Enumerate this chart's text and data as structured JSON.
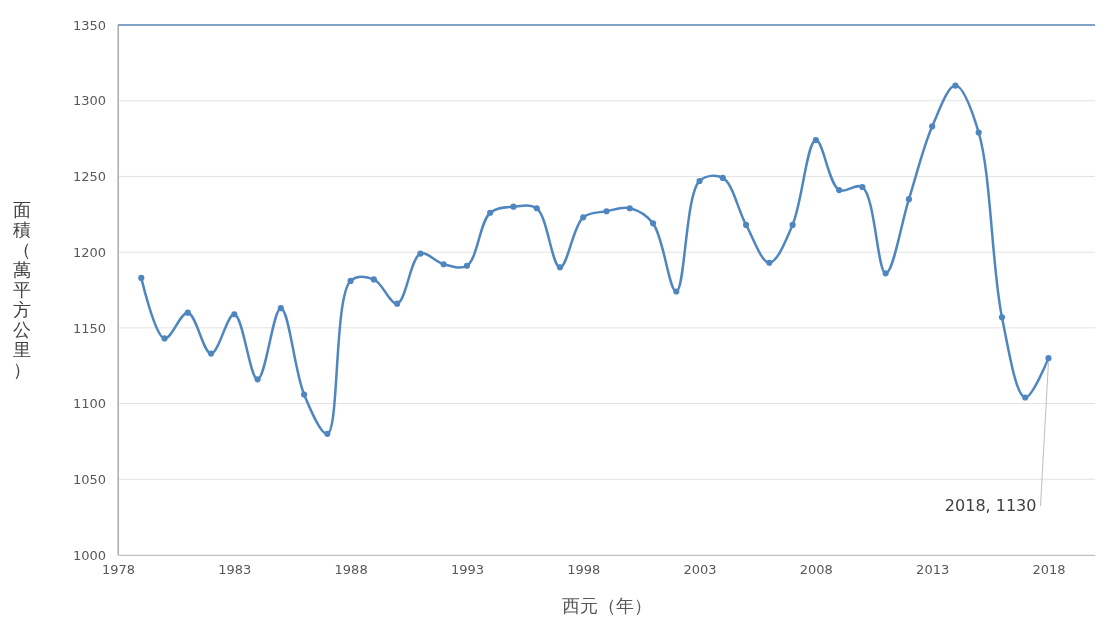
{
  "chart_data": {
    "type": "line",
    "xlabel": "西元（年）",
    "ylabel": "面積（萬平方公里）",
    "x": [
      1979,
      1980,
      1981,
      1982,
      1983,
      1984,
      1985,
      1986,
      1987,
      1988,
      1989,
      1990,
      1991,
      1992,
      1993,
      1994,
      1995,
      1996,
      1997,
      1998,
      1999,
      2000,
      2001,
      2002,
      2003,
      2004,
      2005,
      2006,
      2007,
      2008,
      2009,
      2010,
      2011,
      2012,
      2013,
      2014,
      2015,
      2016,
      2017,
      2018
    ],
    "series": [
      {
        "color": "#4f86c0",
        "values": [
          1183,
          1143,
          1160,
          1133,
          1159,
          1116,
          1163,
          1106,
          1080,
          1181,
          1182,
          1166,
          1199,
          1192,
          1191,
          1226,
          1230,
          1229,
          1190,
          1223,
          1227,
          1229,
          1219,
          1174,
          1247,
          1249,
          1218,
          1193,
          1218,
          1274,
          1241,
          1243,
          1186,
          1235,
          1283,
          1310,
          1279,
          1157,
          1104,
          1130
        ]
      }
    ],
    "xlim": [
      1978,
      2020
    ],
    "xticks": [
      1978,
      1983,
      1988,
      1993,
      1998,
      2003,
      2008,
      2013,
      2018
    ],
    "ylim": [
      1000,
      1350
    ],
    "yticks": [
      1000,
      1050,
      1100,
      1150,
      1200,
      1250,
      1300,
      1350
    ],
    "grid": "y",
    "marker": "circle",
    "line_style": "solid",
    "annotations": [
      {
        "text": "2018, 1130",
        "x": 2018,
        "y": 1130
      }
    ]
  }
}
